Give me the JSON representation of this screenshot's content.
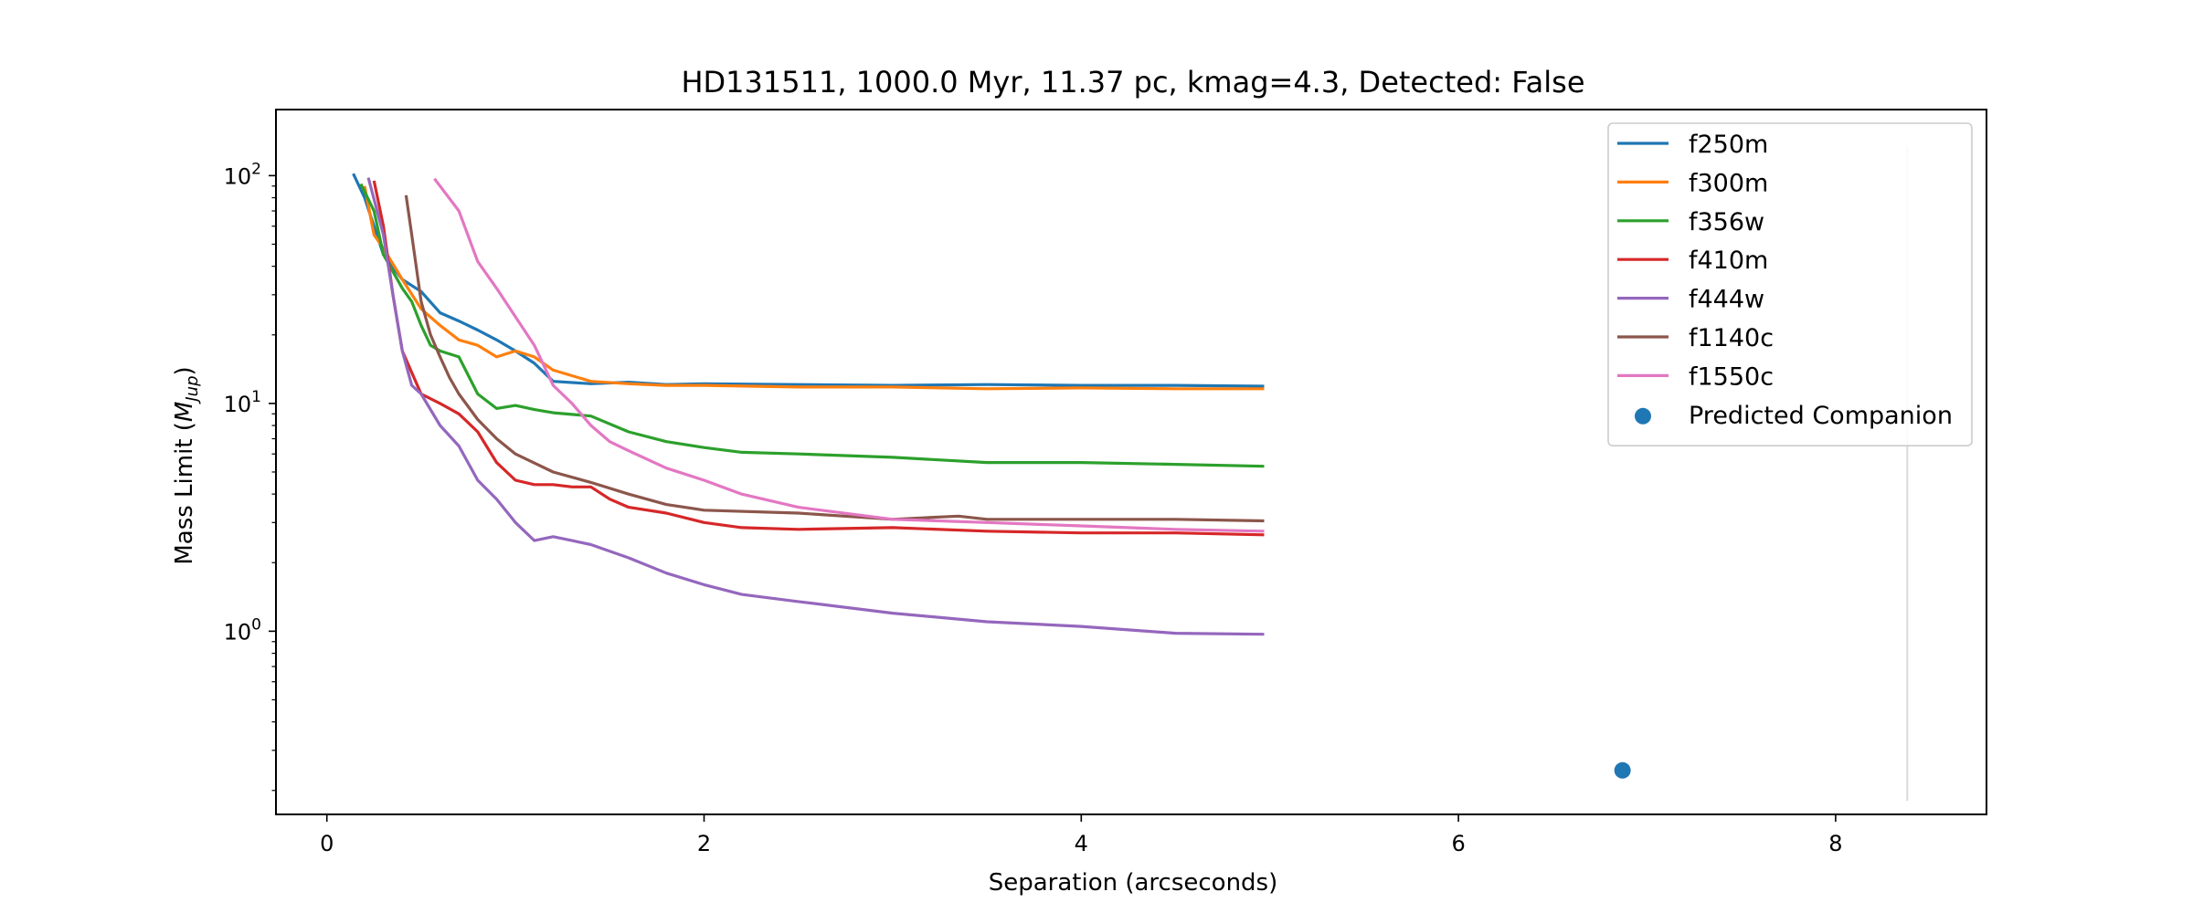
{
  "chart_data": {
    "type": "line",
    "title": "HD131511, 1000.0 Myr, 11.37 pc, kmag=4.3, Detected: False",
    "xlabel": "Separation (arcseconds)",
    "ylabel_text": "Mass Limit (",
    "ylabel_math_base": "M",
    "ylabel_math_sub": "Jup",
    "ylabel_close": ")",
    "xlim": [
      -0.27,
      8.8
    ],
    "ylim": [
      0.157,
      195
    ],
    "yscale": "log",
    "xticks": [
      0,
      2,
      4,
      6,
      8
    ],
    "xtick_labels": [
      "0",
      "2",
      "4",
      "6",
      "8"
    ],
    "yticks": [
      1,
      10,
      100
    ],
    "ytick_labels": [
      {
        "base": "10",
        "exp": "0"
      },
      {
        "base": "10",
        "exp": "1"
      },
      {
        "base": "10",
        "exp": "2"
      }
    ],
    "legend_position": "upper right",
    "series": [
      {
        "name": "f250m",
        "color": "#1f77b4",
        "x": [
          0.14,
          0.2,
          0.3,
          0.4,
          0.5,
          0.6,
          0.7,
          0.8,
          0.9,
          1.0,
          1.1,
          1.2,
          1.4,
          1.6,
          1.8,
          2.0,
          2.5,
          3.0,
          3.5,
          4.0,
          4.5,
          4.97
        ],
        "y": [
          102,
          80,
          45,
          35,
          31,
          25,
          23,
          21,
          19,
          17,
          15,
          12.5,
          12.2,
          12.4,
          12.1,
          12.2,
          12.1,
          12.0,
          12.1,
          12.0,
          12.0,
          11.9
        ]
      },
      {
        "name": "f300m",
        "color": "#ff7f0e",
        "x": [
          0.2,
          0.25,
          0.3,
          0.4,
          0.5,
          0.6,
          0.7,
          0.8,
          0.9,
          1.0,
          1.1,
          1.2,
          1.4,
          1.6,
          1.8,
          2.0,
          2.5,
          3.0,
          3.5,
          4.0,
          4.5,
          4.97
        ],
        "y": [
          90,
          55,
          48,
          35,
          26,
          22,
          19,
          18,
          16,
          17,
          16,
          14,
          12.5,
          12.2,
          12.0,
          12.0,
          11.8,
          11.8,
          11.6,
          11.7,
          11.6,
          11.6
        ]
      },
      {
        "name": "f356w",
        "color": "#2ca02c",
        "x": [
          0.18,
          0.25,
          0.3,
          0.4,
          0.45,
          0.5,
          0.55,
          0.6,
          0.65,
          0.7,
          0.8,
          0.9,
          1.0,
          1.1,
          1.2,
          1.4,
          1.6,
          1.8,
          2.0,
          2.2,
          2.5,
          3.0,
          3.5,
          4.0,
          4.5,
          4.97
        ],
        "y": [
          92,
          70,
          45,
          32,
          28,
          22,
          18,
          17,
          16.5,
          16,
          11,
          9.5,
          9.8,
          9.4,
          9.1,
          8.8,
          7.5,
          6.8,
          6.4,
          6.1,
          6.0,
          5.8,
          5.5,
          5.5,
          5.4,
          5.3
        ]
      },
      {
        "name": "f410m",
        "color": "#d62728",
        "x": [
          0.25,
          0.3,
          0.35,
          0.4,
          0.5,
          0.6,
          0.7,
          0.8,
          0.9,
          1.0,
          1.1,
          1.2,
          1.3,
          1.4,
          1.5,
          1.6,
          1.8,
          2.0,
          2.2,
          2.5,
          3.0,
          3.5,
          4.0,
          4.5,
          4.97
        ],
        "y": [
          95,
          60,
          30,
          17,
          11,
          10,
          9,
          7.5,
          5.5,
          4.6,
          4.4,
          4.4,
          4.3,
          4.3,
          3.8,
          3.5,
          3.3,
          3.0,
          2.85,
          2.8,
          2.85,
          2.75,
          2.7,
          2.7,
          2.65
        ]
      },
      {
        "name": "f444w",
        "color": "#9467bd",
        "x": [
          0.22,
          0.3,
          0.35,
          0.4,
          0.45,
          0.5,
          0.6,
          0.7,
          0.8,
          0.9,
          1.0,
          1.1,
          1.2,
          1.3,
          1.4,
          1.6,
          1.8,
          2.0,
          2.2,
          2.5,
          3.0,
          3.5,
          4.0,
          4.5,
          4.97
        ],
        "y": [
          98,
          55,
          30,
          17,
          12,
          11,
          8,
          6.5,
          4.6,
          3.8,
          3.0,
          2.5,
          2.6,
          2.5,
          2.4,
          2.1,
          1.8,
          1.6,
          1.45,
          1.35,
          1.2,
          1.1,
          1.05,
          0.98,
          0.97
        ]
      },
      {
        "name": "f1140c",
        "color": "#8c564b",
        "x": [
          0.42,
          0.45,
          0.5,
          0.55,
          0.6,
          0.65,
          0.7,
          0.8,
          0.9,
          1.0,
          1.2,
          1.4,
          1.6,
          1.8,
          2.0,
          2.5,
          3.0,
          3.35,
          3.5,
          4.0,
          4.5,
          4.97
        ],
        "y": [
          82,
          55,
          28,
          20,
          16,
          13,
          11,
          8.5,
          7,
          6,
          5,
          4.5,
          4.0,
          3.6,
          3.4,
          3.3,
          3.1,
          3.2,
          3.1,
          3.1,
          3.1,
          3.05
        ]
      },
      {
        "name": "f1550c",
        "color": "#e377c2",
        "x": [
          0.57,
          0.6,
          0.7,
          0.8,
          0.9,
          1.0,
          1.1,
          1.2,
          1.3,
          1.4,
          1.5,
          1.6,
          1.8,
          2.0,
          2.2,
          2.5,
          3.0,
          3.5,
          4.0,
          4.5,
          4.97
        ],
        "y": [
          97,
          90,
          70,
          42,
          32,
          24,
          18,
          12,
          10,
          8,
          6.8,
          6.2,
          5.2,
          4.6,
          4.0,
          3.5,
          3.1,
          3.0,
          2.9,
          2.8,
          2.75
        ]
      }
    ],
    "scatter": [
      {
        "name": "Predicted Companion",
        "color": "#1f77b4",
        "x": [
          6.87
        ],
        "y": [
          0.245
        ]
      }
    ],
    "vline": {
      "x": 8.38,
      "ymin": 0.18,
      "ymax": 135,
      "color": "#d9d9d9"
    }
  }
}
